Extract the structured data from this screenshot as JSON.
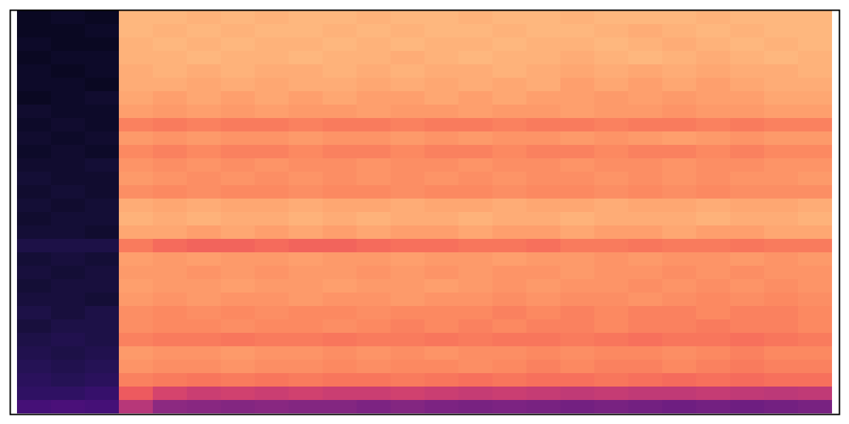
{
  "chart_data": {
    "type": "heatmap",
    "tick_labels": false,
    "color": "magma",
    "zlim": [
      -80,
      0
    ],
    "cells": [
      [
        -75,
        -74,
        -75,
        -12,
        -12,
        -13,
        -12,
        -13,
        -12,
        -12,
        -13,
        -12,
        -12,
        -13,
        -12,
        -12,
        -13,
        -12,
        -12,
        -12,
        -13,
        -12,
        -12,
        -12
      ],
      [
        -75,
        -75,
        -74,
        -12,
        -13,
        -12,
        -13,
        -12,
        -12,
        -13,
        -12,
        -13,
        -12,
        -12,
        -13,
        -12,
        -12,
        -13,
        -14,
        -13,
        -12,
        -13,
        -12,
        -12
      ],
      [
        -74,
        -75,
        -75,
        -13,
        -12,
        -13,
        -12,
        -13,
        -13,
        -12,
        -13,
        -12,
        -13,
        -13,
        -12,
        -13,
        -13,
        -12,
        -13,
        -14,
        -13,
        -12,
        -13,
        -12
      ],
      [
        -75,
        -74,
        -74,
        -13,
        -13,
        -12,
        -13,
        -13,
        -12,
        -13,
        -13,
        -14,
        -13,
        -12,
        -13,
        -13,
        -14,
        -13,
        -12,
        -13,
        -14,
        -13,
        -12,
        -13
      ],
      [
        -74,
        -75,
        -74,
        -14,
        -13,
        -14,
        -13,
        -14,
        -14,
        -13,
        -14,
        -13,
        -14,
        -14,
        -13,
        -14,
        -15,
        -14,
        -15,
        -14,
        -15,
        -14,
        -14,
        -13
      ],
      [
        -74,
        -74,
        -75,
        -14,
        -14,
        -15,
        -14,
        -15,
        -14,
        -14,
        -15,
        -14,
        -15,
        -14,
        -15,
        -14,
        -16,
        -15,
        -16,
        -15,
        -16,
        -15,
        -14,
        -14
      ],
      [
        -75,
        -74,
        -73,
        -15,
        -16,
        -15,
        -16,
        -15,
        -16,
        -15,
        -16,
        -16,
        -15,
        -16,
        -15,
        -16,
        -16,
        -17,
        -16,
        -17,
        -16,
        -16,
        -15,
        -15
      ],
      [
        -73,
        -74,
        -74,
        -16,
        -17,
        -16,
        -17,
        -16,
        -17,
        -17,
        -16,
        -17,
        -17,
        -16,
        -17,
        -17,
        -16,
        -17,
        -17,
        -18,
        -17,
        -17,
        -16,
        -16
      ],
      [
        -74,
        -73,
        -74,
        -21,
        -22,
        -21,
        -22,
        -22,
        -21,
        -22,
        -22,
        -21,
        -22,
        -22,
        -21,
        -22,
        -22,
        -21,
        -22,
        -22,
        -21,
        -22,
        -21,
        -21
      ],
      [
        -73,
        -74,
        -73,
        -17,
        -18,
        -17,
        -18,
        -18,
        -17,
        -18,
        -18,
        -17,
        -18,
        -17,
        -18,
        -18,
        -17,
        -18,
        -17,
        -16,
        -17,
        -18,
        -17,
        -17
      ],
      [
        -74,
        -73,
        -74,
        -20,
        -21,
        -20,
        -21,
        -21,
        -20,
        -21,
        -21,
        -20,
        -21,
        -21,
        -20,
        -21,
        -21,
        -20,
        -21,
        -21,
        -20,
        -21,
        -20,
        -20
      ],
      [
        -73,
        -73,
        -72,
        -18,
        -19,
        -18,
        -19,
        -18,
        -19,
        -19,
        -18,
        -19,
        -19,
        -18,
        -19,
        -19,
        -18,
        -19,
        -19,
        -18,
        -19,
        -19,
        -18,
        -18
      ],
      [
        -72,
        -73,
        -73,
        -17,
        -18,
        -19,
        -18,
        -19,
        -18,
        -19,
        -18,
        -19,
        -18,
        -19,
        -18,
        -19,
        -19,
        -18,
        -19,
        -18,
        -19,
        -18,
        -18,
        -17
      ],
      [
        -73,
        -72,
        -73,
        -19,
        -20,
        -19,
        -20,
        -20,
        -19,
        -20,
        -20,
        -19,
        -20,
        -20,
        -19,
        -20,
        -20,
        -19,
        -20,
        -19,
        -20,
        -19,
        -19,
        -19
      ],
      [
        -72,
        -73,
        -72,
        -14,
        -15,
        -14,
        -15,
        -15,
        -14,
        -15,
        -15,
        -14,
        -15,
        -15,
        -14,
        -15,
        -15,
        -14,
        -15,
        -15,
        -14,
        -15,
        -15,
        -14
      ],
      [
        -73,
        -72,
        -72,
        -13,
        -14,
        -13,
        -14,
        -14,
        -13,
        -14,
        -13,
        -14,
        -14,
        -13,
        -14,
        -14,
        -13,
        -14,
        -14,
        -14,
        -13,
        -14,
        -14,
        -13
      ],
      [
        -72,
        -72,
        -73,
        -15,
        -15,
        -16,
        -15,
        -16,
        -15,
        -16,
        -15,
        -16,
        -16,
        -15,
        -16,
        -16,
        -15,
        -16,
        -16,
        -15,
        -16,
        -16,
        -15,
        -15
      ],
      [
        -70,
        -70,
        -70,
        -22,
        -25,
        -26,
        -26,
        -25,
        -26,
        -26,
        -25,
        -24,
        -24,
        -23,
        -23,
        -24,
        -22,
        -22,
        -23,
        -22,
        -22,
        -23,
        -22,
        -22
      ],
      [
        -72,
        -71,
        -72,
        -16,
        -17,
        -16,
        -17,
        -17,
        -16,
        -17,
        -17,
        -16,
        -17,
        -17,
        -16,
        -17,
        -17,
        -18,
        -17,
        -18,
        -18,
        -17,
        -18,
        -17
      ],
      [
        -71,
        -72,
        -71,
        -17,
        -17,
        -18,
        -17,
        -18,
        -17,
        -17,
        -18,
        -17,
        -18,
        -17,
        -18,
        -18,
        -17,
        -18,
        -18,
        -19,
        -18,
        -19,
        -18,
        -18
      ],
      [
        -72,
        -71,
        -71,
        -16,
        -17,
        -17,
        -16,
        -17,
        -17,
        -16,
        -17,
        -17,
        -16,
        -17,
        -18,
        -17,
        -18,
        -18,
        -19,
        -18,
        -19,
        -18,
        -19,
        -18
      ],
      [
        -71,
        -71,
        -72,
        -17,
        -18,
        -17,
        -18,
        -18,
        -17,
        -18,
        -18,
        -17,
        -18,
        -18,
        -19,
        -18,
        -19,
        -19,
        -18,
        -19,
        -20,
        -19,
        -20,
        -19
      ],
      [
        -70,
        -71,
        -70,
        -19,
        -20,
        -19,
        -20,
        -19,
        -20,
        -20,
        -19,
        -20,
        -20,
        -20,
        -21,
        -20,
        -21,
        -20,
        -21,
        -21,
        -20,
        -21,
        -21,
        -20
      ],
      [
        -71,
        -70,
        -70,
        -19,
        -20,
        -20,
        -19,
        -20,
        -20,
        -19,
        -20,
        -21,
        -20,
        -21,
        -20,
        -21,
        -21,
        -20,
        -21,
        -21,
        -22,
        -21,
        -21,
        -20
      ],
      [
        -70,
        -69,
        -70,
        -21,
        -22,
        -22,
        -23,
        -22,
        -22,
        -23,
        -22,
        -22,
        -23,
        -22,
        -23,
        -23,
        -22,
        -23,
        -24,
        -23,
        -23,
        -24,
        -23,
        -22
      ],
      [
        -69,
        -70,
        -69,
        -17,
        -18,
        -18,
        -17,
        -18,
        -18,
        -19,
        -18,
        -19,
        -18,
        -19,
        -19,
        -20,
        -19,
        -20,
        -20,
        -19,
        -20,
        -21,
        -20,
        -20
      ],
      [
        -68,
        -69,
        -68,
        -18,
        -19,
        -19,
        -18,
        -19,
        -19,
        -20,
        -19,
        -20,
        -20,
        -19,
        -20,
        -21,
        -20,
        -21,
        -21,
        -20,
        -21,
        -22,
        -21,
        -21
      ],
      [
        -67,
        -68,
        -67,
        -21,
        -22,
        -23,
        -22,
        -23,
        -22,
        -23,
        -23,
        -22,
        -23,
        -24,
        -23,
        -24,
        -24,
        -23,
        -24,
        -25,
        -24,
        -25,
        -24,
        -24
      ],
      [
        -66,
        -66,
        -65,
        -28,
        -34,
        -36,
        -35,
        -36,
        -35,
        -36,
        -36,
        -35,
        -36,
        -37,
        -36,
        -37,
        -38,
        -37,
        -38,
        -38,
        -37,
        -38,
        -39,
        -38
      ],
      [
        -62,
        -61,
        -62,
        -40,
        -48,
        -49,
        -50,
        -49,
        -50,
        -50,
        -51,
        -50,
        -51,
        -52,
        -51,
        -52,
        -53,
        -52,
        -53,
        -54,
        -53,
        -54,
        -53,
        -52
      ]
    ]
  }
}
